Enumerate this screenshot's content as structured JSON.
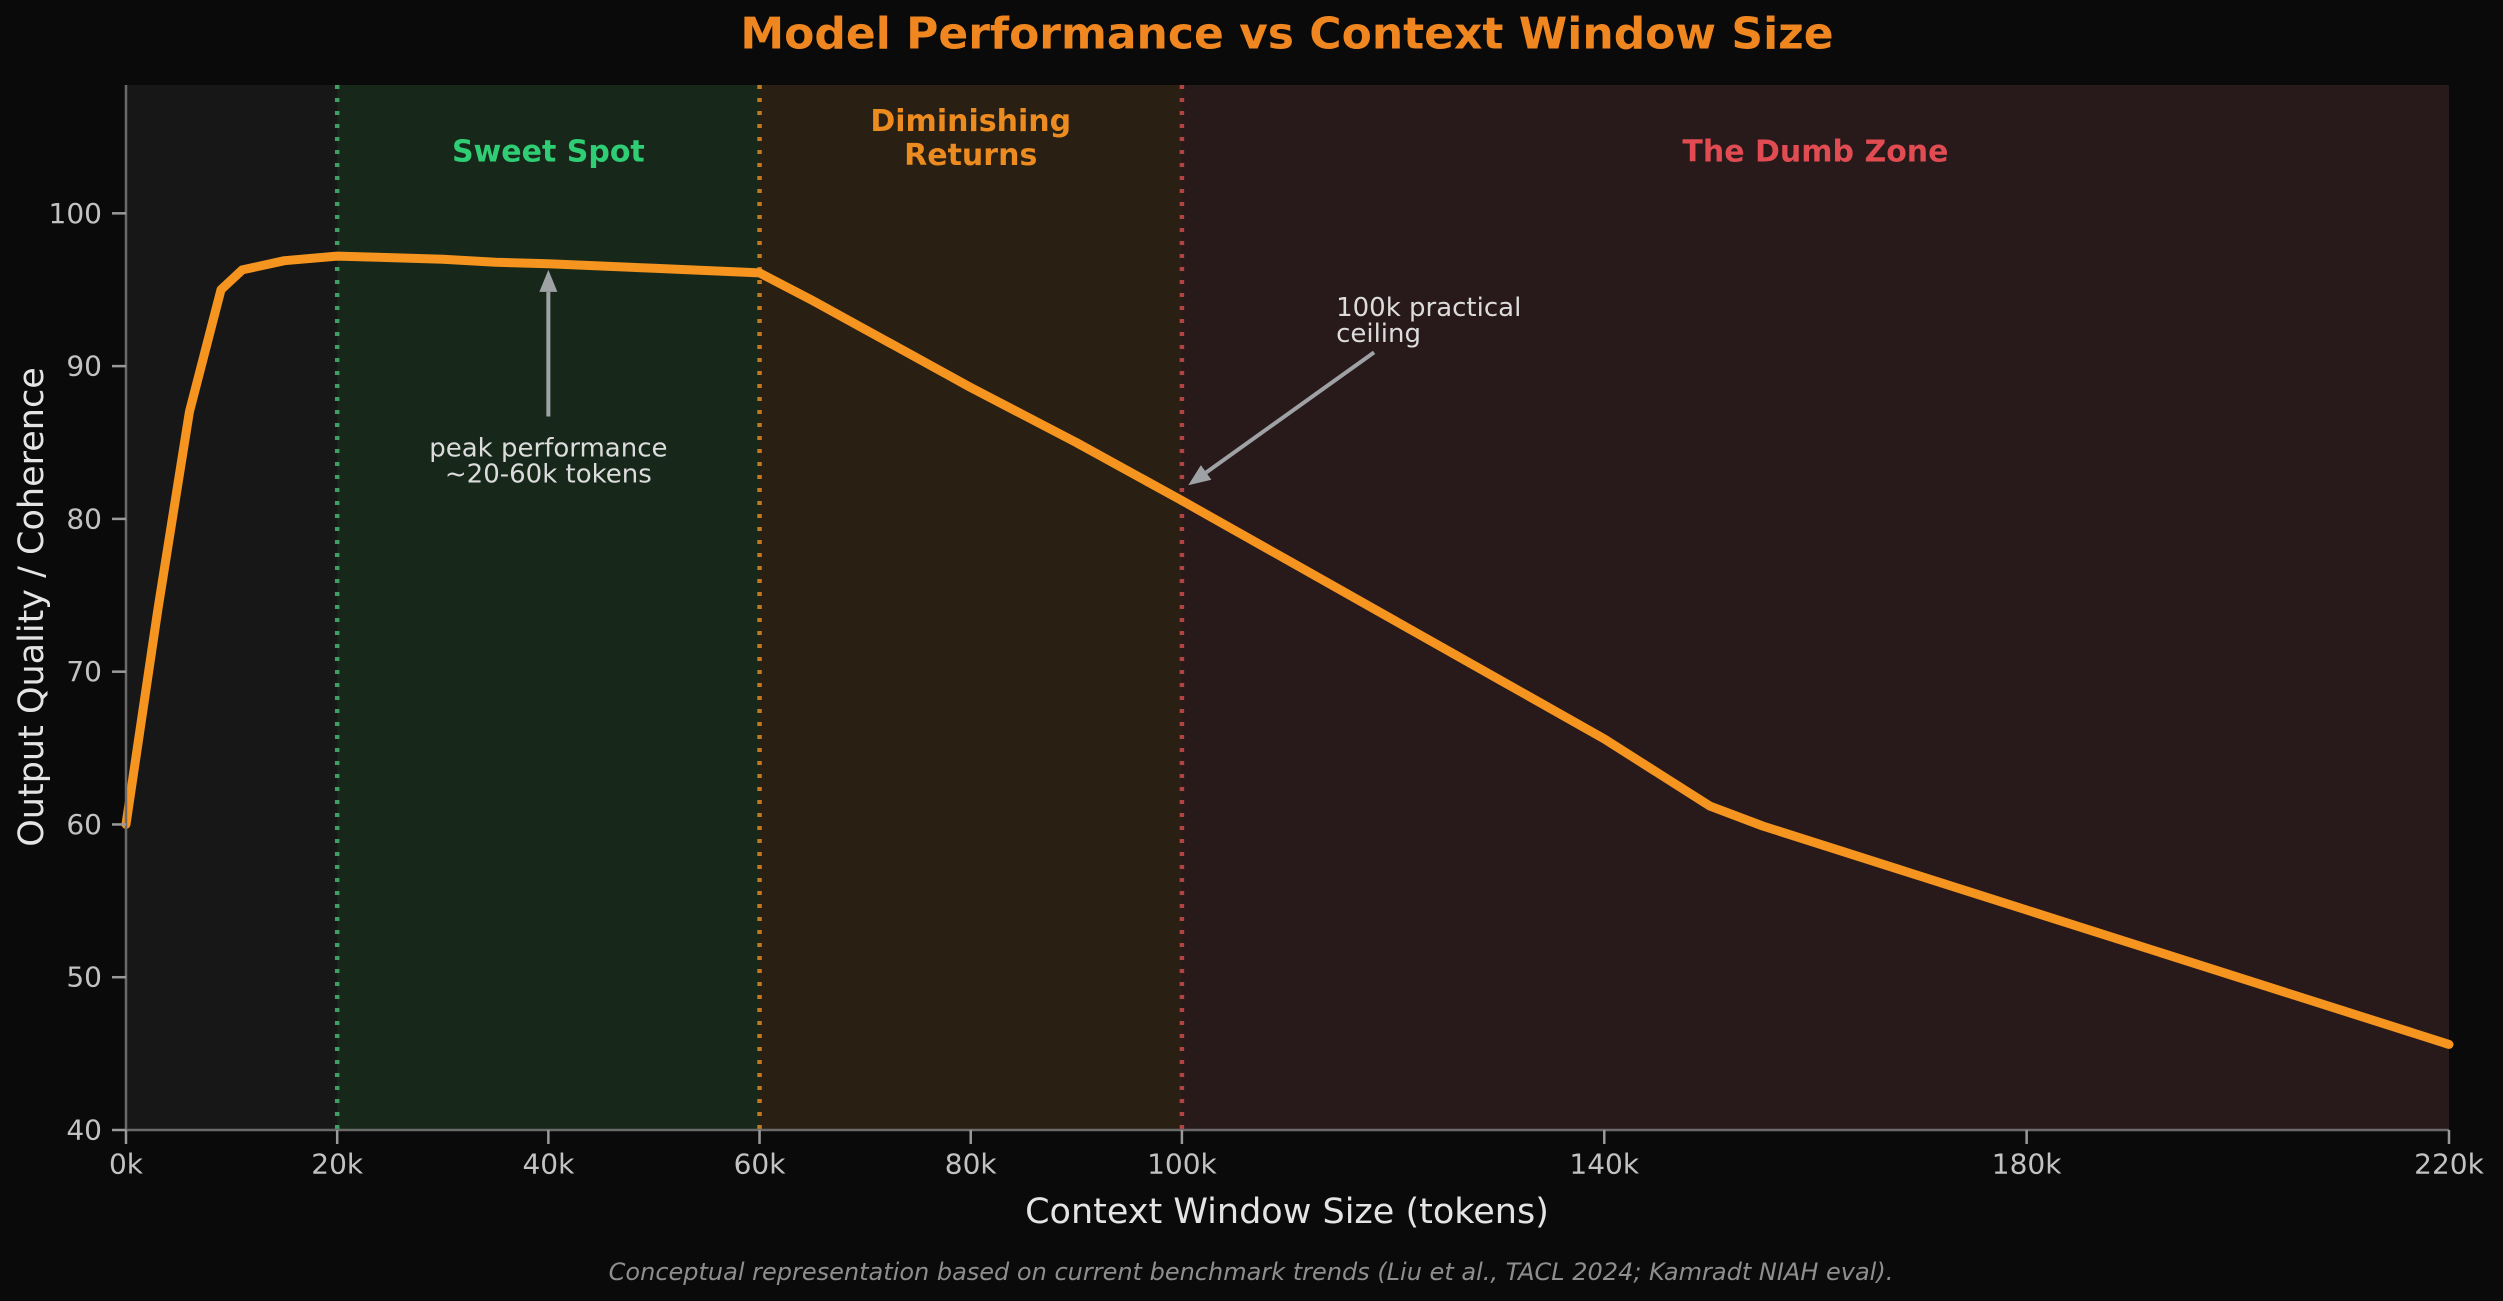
{
  "chart_data": {
    "type": "line",
    "title": "Model Performance vs Context Window Size",
    "xlabel": "Context Window Size (tokens)",
    "ylabel": "Output Quality / Coherence",
    "footnote": "Conceptual representation based on current benchmark trends (Liu et al., TACL 2024; Kamradt NIAH eval).",
    "xlim": [
      0,
      220
    ],
    "ylim": [
      40,
      108.4
    ],
    "grid": false,
    "legend_position": "none",
    "x_tick_unit": "k = thousands of tokens",
    "x_ticks": [
      {
        "v": 0,
        "label": "0k"
      },
      {
        "v": 20,
        "label": "20k"
      },
      {
        "v": 40,
        "label": "40k"
      },
      {
        "v": 60,
        "label": "60k"
      },
      {
        "v": 80,
        "label": "80k"
      },
      {
        "v": 100,
        "label": "100k"
      },
      {
        "v": 140,
        "label": "140k"
      },
      {
        "v": 180,
        "label": "180k"
      },
      {
        "v": 220,
        "label": "220k"
      }
    ],
    "y_ticks": [
      {
        "v": 40,
        "label": "40"
      },
      {
        "v": 50,
        "label": "50"
      },
      {
        "v": 60,
        "label": "60"
      },
      {
        "v": 70,
        "label": "70"
      },
      {
        "v": 80,
        "label": "80"
      },
      {
        "v": 90,
        "label": "90"
      },
      {
        "v": 100,
        "label": "100"
      }
    ],
    "series": [
      {
        "name": "output-quality-vs-context",
        "color": "#f5941f",
        "line_width": 9,
        "x": [
          0,
          3,
          6,
          9,
          11,
          15,
          20,
          25,
          30,
          35,
          40,
          50,
          60,
          65,
          70,
          80,
          90,
          100,
          110,
          120,
          130,
          140,
          145,
          150,
          155,
          160,
          180,
          200,
          220
        ],
        "y": [
          60,
          74,
          87,
          95,
          96.3,
          96.9,
          97.2,
          97.1,
          97.0,
          96.8,
          96.7,
          96.4,
          96.1,
          94.3,
          92.4,
          88.6,
          85.0,
          81.2,
          77.3,
          73.4,
          69.5,
          65.6,
          63.4,
          61.2,
          59.9,
          58.8,
          54.4,
          50.0,
          45.6
        ]
      }
    ],
    "zones": [
      {
        "name": "sweet-spot",
        "label": "Sweet Spot",
        "from": 20,
        "to": 60,
        "fill": "#17281b",
        "boundary_color": "#3f9e63",
        "label_color": "#2fce74",
        "label_x": 40,
        "label_lines": [
          {
            "text": "Sweet Spot",
            "v": 104.0
          }
        ]
      },
      {
        "name": "diminishing-returns",
        "label": "Diminishing Returns",
        "from": 60,
        "to": 100,
        "fill": "#291f13",
        "boundary_color": "#c07a20",
        "label_color": "#ec8b20",
        "label_x": 80,
        "label_lines": [
          {
            "text": "Diminishing",
            "v": 106.0
          },
          {
            "text": "Returns",
            "v": 103.8
          }
        ]
      },
      {
        "name": "the-dumb-zone",
        "label": "The Dumb Zone",
        "from": 100,
        "to": 220,
        "fill": "#281a1b",
        "boundary_color": "#b24343",
        "label_color": "#e04c52",
        "label_x": 160,
        "label_lines": [
          {
            "text": "The Dumb Zone",
            "v": 104.0
          }
        ]
      }
    ],
    "annotations": [
      {
        "name": "peak-annotation",
        "lines": [
          "peak performance",
          "~20-60k tokens"
        ],
        "text_x": 40,
        "text_anchor": "middle",
        "line_v": [
          84.6,
          82.9
        ],
        "arrow": {
          "x1": 40,
          "v1": 86.7,
          "x2": 40,
          "v2": 96.3
        }
      },
      {
        "name": "ceiling-annotation",
        "lines": [
          "100k practical",
          "ceiling"
        ],
        "text_x": 114.6,
        "text_anchor": "start",
        "line_v": [
          93.8,
          92.1
        ],
        "arrow": {
          "x1": 118.2,
          "v1": 90.9,
          "x2": 100.6,
          "v2": 82.2
        }
      }
    ],
    "colors": {
      "figure_bg": "#0a0a0a",
      "plot_bg": "#171717",
      "title": "#f0861f",
      "axis_label": "#e4e4e4",
      "tick_label": "#c2c2c2",
      "spine": "#6a6a6a",
      "tick_mark": "#9a9a9a",
      "annotation_text": "#dcdcdc",
      "arrow": "#9fa2a5",
      "footer": "#8e8e8e"
    }
  }
}
